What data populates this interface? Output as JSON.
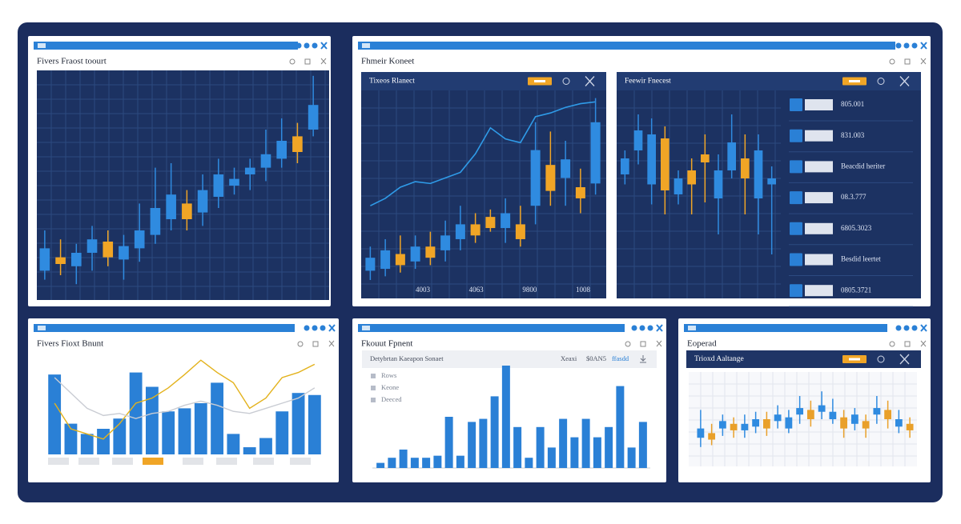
{
  "windows": [
    {
      "title": "Fivers Fraost toourt",
      "chart_data": {
        "type": "candlestick",
        "ylim": [
          0,
          100
        ],
        "up_color": "#2f8be0",
        "down_color": "#f0a526",
        "grid": true,
        "open": [
          12,
          18,
          14,
          20,
          25,
          17,
          22,
          28,
          35,
          42,
          38,
          45,
          50,
          55,
          58,
          62,
          72,
          75
        ],
        "close": [
          22,
          15,
          20,
          26,
          18,
          23,
          30,
          40,
          46,
          35,
          48,
          55,
          53,
          58,
          64,
          70,
          65,
          86
        ],
        "low": [
          8,
          10,
          6,
          12,
          14,
          8,
          16,
          24,
          30,
          30,
          32,
          40,
          46,
          48,
          52,
          58,
          60,
          72
        ],
        "high": [
          30,
          26,
          24,
          32,
          30,
          28,
          42,
          58,
          60,
          48,
          55,
          62,
          58,
          62,
          75,
          80,
          78,
          99
        ]
      }
    },
    {
      "title": "Fhmeir Koneet",
      "panels": [
        {
          "title": "Tixeos Rlanect",
          "chart_data": {
            "type": "candlestick",
            "ylim": [
              0,
              100
            ],
            "up_color": "#2f8be0",
            "down_color": "#f0a526",
            "grid": true,
            "x_labels": [
              "4003",
              "4063",
              "9800",
              "1008"
            ],
            "line": {
              "color": "#2f9be8",
              "values": [
                40,
                44,
                50,
                53,
                52,
                55,
                58,
                68,
                82,
                76,
                74,
                88,
                90,
                93,
                95,
                96
              ]
            },
            "open": [
              5,
              6,
              14,
              10,
              18,
              16,
              22,
              30,
              34,
              28,
              30,
              40,
              62,
              55,
              50,
              52
            ],
            "close": [
              12,
              16,
              8,
              18,
              12,
              24,
              30,
              24,
              28,
              36,
              22,
              70,
              48,
              65,
              44,
              85
            ],
            "low": [
              0,
              2,
              4,
              6,
              8,
              10,
              16,
              20,
              26,
              20,
              18,
              30,
              40,
              40,
              36,
              46
            ],
            "high": [
              18,
              22,
              24,
              24,
              26,
              32,
              40,
              36,
              38,
              44,
              40,
              85,
              80,
              75,
              60,
              98
            ]
          }
        },
        {
          "title": "Feewir Fnecest",
          "chart_data": {
            "type": "candlestick",
            "ylim": [
              0,
              100
            ],
            "up_color": "#2f8be0",
            "down_color": "#f0a526",
            "grid": true,
            "open": [
              60,
              72,
              55,
              78,
              50,
              62,
              70,
              48,
              62,
              68,
              48,
              55
            ],
            "close": [
              68,
              82,
              80,
              52,
              58,
              55,
              66,
              62,
              76,
              58,
              72,
              58
            ],
            "low": [
              55,
              65,
              45,
              40,
              45,
              40,
              46,
              30,
              58,
              40,
              30,
              20
            ],
            "high": [
              72,
              90,
              88,
              84,
              62,
              68,
              80,
              70,
              90,
              80,
              80,
              64
            ]
          },
          "list": [
            "805.001",
            "831.003",
            "Beacdid heriter",
            "08.3.777",
            "6805.3023",
            "Besdid leertet",
            "0805.3721"
          ]
        }
      ]
    },
    {
      "title": "Fivers Fioxt Bnunt",
      "chart_data": {
        "type": "bar",
        "ylim": [
          0,
          100
        ],
        "color": "#2a80d6",
        "values": [
          78,
          30,
          20,
          25,
          35,
          80,
          66,
          42,
          45,
          50,
          70,
          20,
          7,
          16,
          42,
          60,
          58
        ],
        "lines": [
          {
            "color": "#e3b21c",
            "values": [
              50,
              25,
              20,
              15,
              30,
              50,
              55,
              65,
              78,
              92,
              80,
              70,
              45,
              55,
              75,
              80,
              88
            ]
          },
          {
            "color": "#c9ccd3",
            "values": [
              75,
              60,
              45,
              38,
              40,
              35,
              40,
              42,
              48,
              52,
              48,
              42,
              40,
              45,
              50,
              55,
              65
            ]
          }
        ]
      }
    },
    {
      "title": "Fkouut Fpnent",
      "header": {
        "title": "Detybrtan Kaeapon Sonaet",
        "items": [
          "Xeaxi",
          "$0AN5",
          "ffasdd"
        ]
      },
      "list": [
        "Rows",
        "Keone",
        "Deeced"
      ],
      "chart_data": {
        "type": "bar",
        "ylim": [
          0,
          100
        ],
        "color": "#2a80d6",
        "values": [
          5,
          10,
          18,
          10,
          10,
          12,
          50,
          12,
          45,
          48,
          70,
          100,
          40,
          10,
          40,
          20,
          48,
          30,
          48,
          30,
          40,
          80,
          20,
          45
        ]
      }
    },
    {
      "title": "Eoperad",
      "header": {
        "title": "Trioxd Aaltange"
      },
      "chart_data": {
        "type": "candlestick",
        "ylim": [
          0,
          100
        ],
        "up_color": "#2f8be0",
        "down_color": "#e9a02a",
        "grid": true,
        "open": [
          30,
          35,
          40,
          45,
          38,
          42,
          50,
          48,
          40,
          55,
          60,
          58,
          50,
          52,
          45,
          48,
          55,
          60,
          42,
          45
        ],
        "close": [
          40,
          28,
          48,
          38,
          45,
          50,
          40,
          55,
          52,
          62,
          50,
          65,
          58,
          40,
          55,
          40,
          62,
          50,
          50,
          38
        ],
        "low": [
          20,
          22,
          32,
          30,
          30,
          35,
          32,
          40,
          35,
          45,
          42,
          50,
          45,
          30,
          38,
          30,
          45,
          40,
          35,
          30
        ],
        "high": [
          60,
          45,
          55,
          52,
          55,
          58,
          58,
          65,
          60,
          75,
          70,
          80,
          72,
          60,
          62,
          55,
          75,
          70,
          60,
          52
        ]
      }
    }
  ]
}
